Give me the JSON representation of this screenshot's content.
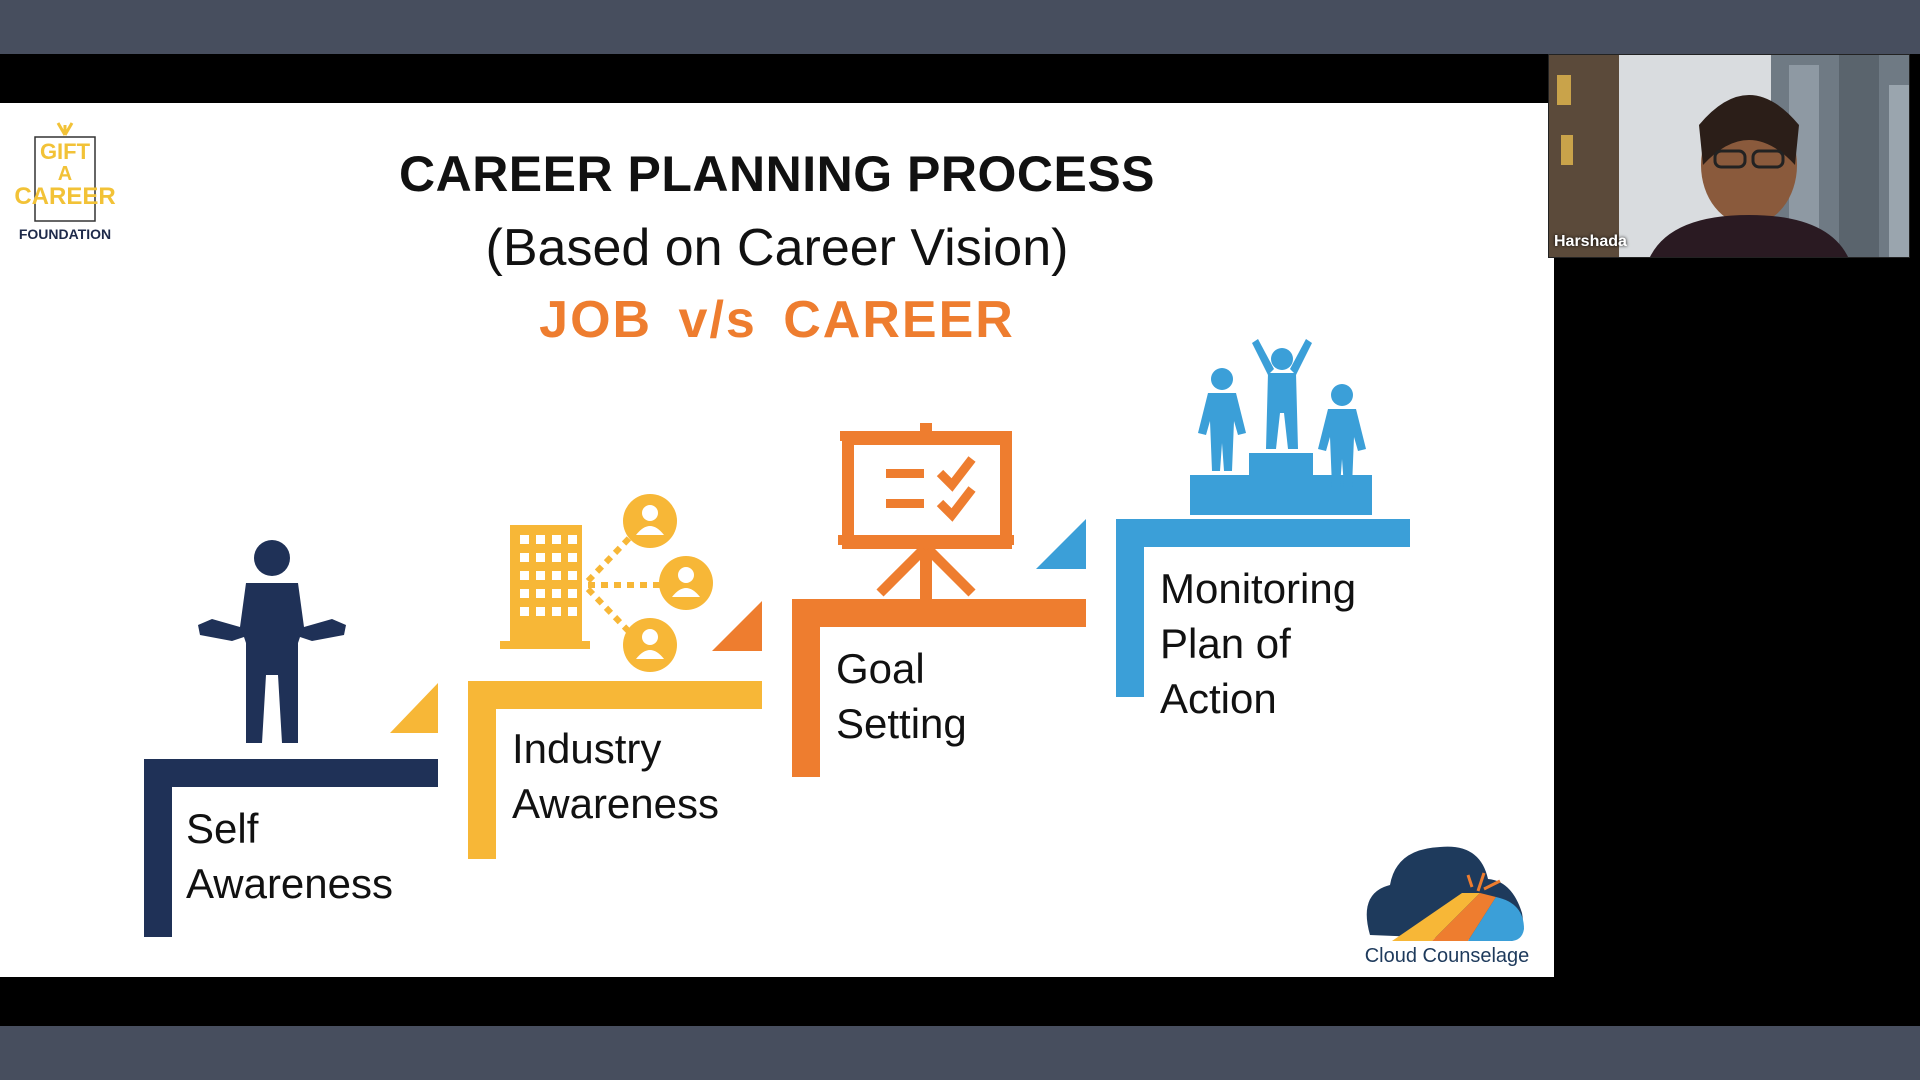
{
  "meeting": {
    "participant_name": "Harshada"
  },
  "slide": {
    "title": "CAREER PLANNING PROCESS",
    "subtitle": "(Based on Career Vision)",
    "highlight": "JOB  v/s  CAREER",
    "steps": [
      {
        "label": "Self\nAwareness",
        "color": "#1f3157",
        "icon": "person-shrug-icon"
      },
      {
        "label": "Industry\nAwareness",
        "color": "#f7b737",
        "icon": "building-network-icon"
      },
      {
        "label": "Goal\nSetting",
        "color": "#ee7d2f",
        "icon": "presentation-board-icon"
      },
      {
        "label": "Monitoring\nPlan of\nAction",
        "color": "#3b9fd8",
        "icon": "podium-winners-icon"
      }
    ],
    "logo_left": {
      "line1": "GIFT",
      "line2": "A",
      "line3": "CAREER",
      "line4": "FOUNDATION"
    },
    "logo_right": {
      "label": "Cloud Counselage"
    }
  },
  "colors": {
    "frame": "#474e5e",
    "navy": "#1f3157",
    "yellow": "#f7b737",
    "orange": "#ee7d2f",
    "blue": "#3b9fd8"
  }
}
